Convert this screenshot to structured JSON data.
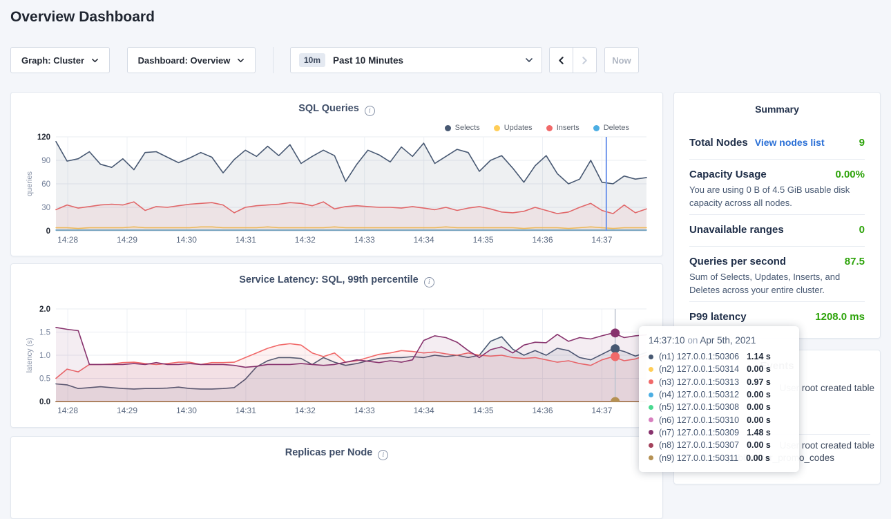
{
  "page": {
    "title": "Overview Dashboard"
  },
  "toolbar": {
    "graph_dropdown": "Graph: Cluster",
    "dashboard_dropdown": "Dashboard: Overview",
    "time_badge": "10m",
    "time_label": "Past 10 Minutes",
    "now_label": "Now"
  },
  "colors": {
    "accent_blue": "#2a6fd6",
    "status_green": "#2da30a",
    "crosshair_blue": "#6f95eb",
    "crosshair_gray": "#bcc3cf"
  },
  "chart_data": [
    {
      "id": "sql-queries",
      "type": "area",
      "title": "SQL Queries",
      "ylabel": "queries",
      "ylim": [
        0,
        120
      ],
      "yticks": [
        {
          "v": 0,
          "label": "0",
          "bold": true
        },
        {
          "v": 30,
          "label": "30",
          "bold": false
        },
        {
          "v": 60,
          "label": "60",
          "bold": false
        },
        {
          "v": 90,
          "label": "90",
          "bold": false
        },
        {
          "v": 120,
          "label": "120",
          "bold": true
        }
      ],
      "xticks": [
        "14:28",
        "14:29",
        "14:30",
        "14:31",
        "14:32",
        "14:33",
        "14:34",
        "14:35",
        "14:36",
        "14:37"
      ],
      "xtick_start_frac": 0.02,
      "xtick_step_frac": 0.1005,
      "grid": true,
      "legend_position": "top-right",
      "legend": [
        {
          "name": "Selects",
          "color": "#475872"
        },
        {
          "name": "Updates",
          "color": "#FFCD57"
        },
        {
          "name": "Inserts",
          "color": "#F16969"
        },
        {
          "name": "Deletes",
          "color": "#4CAEE3"
        }
      ],
      "crosshair": {
        "x_frac": 0.932,
        "color": "#6f95eb",
        "width": 2
      },
      "series": [
        {
          "name": "Deletes",
          "color": "#4CAEE3",
          "flat": 1
        },
        {
          "name": "Updates",
          "color": "#FFCD57",
          "values": [
            4,
            4,
            3,
            4,
            4,
            4,
            4,
            5,
            4,
            4,
            4,
            4,
            4,
            5,
            5,
            4,
            4,
            4,
            4,
            5,
            4,
            4,
            4,
            4,
            4,
            5,
            4,
            4,
            4,
            4,
            4,
            4,
            4,
            4,
            4,
            5,
            4,
            4,
            4,
            4,
            4,
            4,
            3,
            4,
            4,
            4,
            3,
            4,
            5,
            4,
            3,
            4,
            4,
            4
          ]
        },
        {
          "name": "Inserts",
          "color": "#F16969",
          "values": [
            27,
            33,
            29,
            31,
            33,
            34,
            33,
            37,
            26,
            31,
            30,
            32,
            34,
            35,
            36,
            33,
            23,
            30,
            32,
            33,
            34,
            36,
            35,
            32,
            37,
            28,
            31,
            32,
            31,
            30,
            30,
            29,
            31,
            29,
            27,
            30,
            26,
            29,
            31,
            28,
            24,
            23,
            25,
            30,
            26,
            22,
            24,
            30,
            35,
            26,
            22,
            33,
            23,
            28
          ]
        },
        {
          "name": "Selects",
          "color": "#475872",
          "values": [
            114,
            89,
            92,
            101,
            85,
            81,
            92,
            78,
            100,
            101,
            94,
            87,
            93,
            100,
            94,
            74,
            91,
            103,
            95,
            108,
            96,
            110,
            86,
            95,
            103,
            96,
            63,
            85,
            103,
            97,
            88,
            107,
            95,
            112,
            86,
            95,
            104,
            100,
            76,
            90,
            96,
            80,
            62,
            83,
            96,
            73,
            60,
            66,
            90,
            62,
            60,
            70,
            66,
            68
          ]
        }
      ]
    },
    {
      "id": "service-latency",
      "type": "area",
      "title": "Service Latency: SQL, 99th percentile",
      "ylabel": "latency (s)",
      "ylim": [
        0,
        2
      ],
      "yticks": [
        {
          "v": 0,
          "label": "0.0",
          "bold": true
        },
        {
          "v": 0.5,
          "label": "0.5",
          "bold": false
        },
        {
          "v": 1,
          "label": "1.0",
          "bold": false
        },
        {
          "v": 1.5,
          "label": "1.5",
          "bold": false
        },
        {
          "v": 2,
          "label": "2.0",
          "bold": true
        }
      ],
      "xticks": [
        "14:28",
        "14:29",
        "14:30",
        "14:31",
        "14:32",
        "14:33",
        "14:34",
        "14:35",
        "14:36",
        "14:37"
      ],
      "xtick_start_frac": 0.02,
      "xtick_step_frac": 0.1005,
      "grid": true,
      "crosshair": {
        "x_frac": 0.947,
        "color": "#bcc3cf",
        "width": 1.5,
        "dots": [
          {
            "series": "(n7) 127.0.0.1:50309",
            "value": 1.48,
            "color": "#87326D"
          },
          {
            "series": "(n1) 127.0.0.1:50306",
            "value": 1.14,
            "color": "#475872"
          },
          {
            "series": "(n3) 127.0.0.1:50313",
            "value": 0.97,
            "color": "#F16969"
          },
          {
            "series": "(n9) 127.0.0.1:50311",
            "value": 0.0,
            "color": "#B59153"
          }
        ]
      },
      "series": [
        {
          "name": "(n2) 127.0.0.1:50314",
          "color": "#FFCD57",
          "flat": 0
        },
        {
          "name": "(n4) 127.0.0.1:50312",
          "color": "#4CAEE3",
          "flat": 0
        },
        {
          "name": "(n5) 127.0.0.1:50308",
          "color": "#49D990",
          "flat": 0
        },
        {
          "name": "(n6) 127.0.0.1:50310",
          "color": "#D77FBF",
          "flat": 0
        },
        {
          "name": "(n8) 127.0.0.1:50307",
          "color": "#A3415B",
          "flat": 0
        },
        {
          "name": "(n9) 127.0.0.1:50311",
          "color": "#B59153",
          "flat": 0
        },
        {
          "name": "(n1) 127.0.0.1:50306",
          "color": "#475872",
          "values": [
            0.38,
            0.36,
            0.28,
            0.3,
            0.32,
            0.3,
            0.28,
            0.27,
            0.28,
            0.28,
            0.29,
            0.31,
            0.28,
            0.27,
            0.27,
            0.28,
            0.3,
            0.48,
            0.75,
            0.88,
            0.95,
            0.95,
            0.93,
            0.8,
            0.95,
            0.85,
            0.78,
            0.82,
            0.88,
            0.93,
            0.95,
            0.95,
            0.97,
            0.95,
            1.0,
            0.97,
            1.0,
            0.95,
            1.0,
            1.3,
            1.4,
            1.13,
            1.0,
            1.1,
            1.0,
            1.15,
            1.1,
            0.95,
            0.9,
            1.02,
            1.14,
            1.08,
            0.98,
            1.06
          ]
        },
        {
          "name": "(n3) 127.0.0.1:50313",
          "color": "#F16969",
          "values": [
            0.5,
            0.7,
            0.64,
            0.8,
            0.8,
            0.81,
            0.84,
            0.85,
            0.82,
            0.8,
            0.82,
            0.85,
            0.85,
            0.8,
            0.84,
            0.84,
            0.85,
            0.95,
            1.05,
            1.15,
            1.22,
            1.25,
            1.22,
            1.05,
            0.97,
            1.05,
            0.85,
            0.88,
            0.95,
            1.02,
            1.05,
            1.1,
            1.08,
            1.05,
            1.07,
            1.03,
            1.0,
            1.05,
            1.0,
            0.98,
            1.0,
            0.95,
            0.93,
            0.95,
            0.9,
            0.85,
            0.88,
            0.82,
            0.78,
            0.9,
            0.97,
            0.88,
            0.92,
            1.0
          ]
        },
        {
          "name": "(n7) 127.0.0.1:50309",
          "color": "#87326D",
          "values": [
            1.6,
            1.56,
            1.53,
            0.8,
            0.8,
            0.8,
            0.8,
            0.82,
            0.8,
            0.84,
            0.8,
            0.8,
            0.82,
            0.8,
            0.8,
            0.8,
            0.78,
            0.74,
            0.76,
            0.8,
            0.8,
            0.8,
            0.82,
            0.8,
            0.78,
            0.8,
            0.85,
            0.9,
            0.87,
            0.84,
            0.88,
            0.85,
            0.9,
            1.32,
            1.42,
            1.38,
            1.28,
            1.1,
            0.95,
            1.12,
            1.18,
            1.05,
            1.22,
            1.28,
            1.27,
            1.45,
            1.3,
            1.38,
            1.35,
            1.42,
            1.48,
            1.38,
            1.42,
            1.44
          ]
        }
      ]
    },
    {
      "id": "replicas-per-node",
      "type": "area",
      "title": "Replicas per Node"
    }
  ],
  "summary": {
    "title": "Summary",
    "rows": [
      {
        "label": "Total Nodes",
        "link": "View nodes list",
        "value": "9"
      },
      {
        "label": "Capacity Usage",
        "value": "0.00%",
        "description": "You are using 0 B of 4.5 GiB usable disk capacity across all nodes."
      },
      {
        "label": "Unavailable ranges",
        "value": "0"
      },
      {
        "label": "Queries per second",
        "value": "87.5",
        "description": "Sum of Selects, Updates, Inserts, and Deletes across your entire cluster."
      },
      {
        "label": "P99 latency",
        "value": "1208.0 ms"
      }
    ]
  },
  "tooltip": {
    "time": "14:37:10",
    "on": "on",
    "date": "Apr 5th, 2021",
    "rows": [
      {
        "color": "#475872",
        "label": "(n1) 127.0.0.1:50306",
        "value": "1.14 s"
      },
      {
        "color": "#FFCD57",
        "label": "(n2) 127.0.0.1:50314",
        "value": "0.00 s"
      },
      {
        "color": "#F16969",
        "label": "(n3) 127.0.0.1:50313",
        "value": "0.97 s"
      },
      {
        "color": "#4CAEE3",
        "label": "(n4) 127.0.0.1:50312",
        "value": "0.00 s"
      },
      {
        "color": "#49D990",
        "label": "(n5) 127.0.0.1:50308",
        "value": "0.00 s"
      },
      {
        "color": "#D77FBF",
        "label": "(n6) 127.0.0.1:50310",
        "value": "0.00 s"
      },
      {
        "color": "#87326D",
        "label": "(n7) 127.0.0.1:50309",
        "value": "1.48 s"
      },
      {
        "color": "#A3415B",
        "label": "(n8) 127.0.0.1:50307",
        "value": "0.00 s"
      },
      {
        "color": "#B59153",
        "label": "(n9) 127.0.0.1:50311",
        "value": "0.00 s"
      }
    ]
  },
  "events": {
    "title": "Events",
    "items": [
      {
        "text": "User root created table"
      },
      {
        "text": "User root created table"
      },
      {
        "text": "movr.public.user_promo_codes"
      }
    ]
  }
}
